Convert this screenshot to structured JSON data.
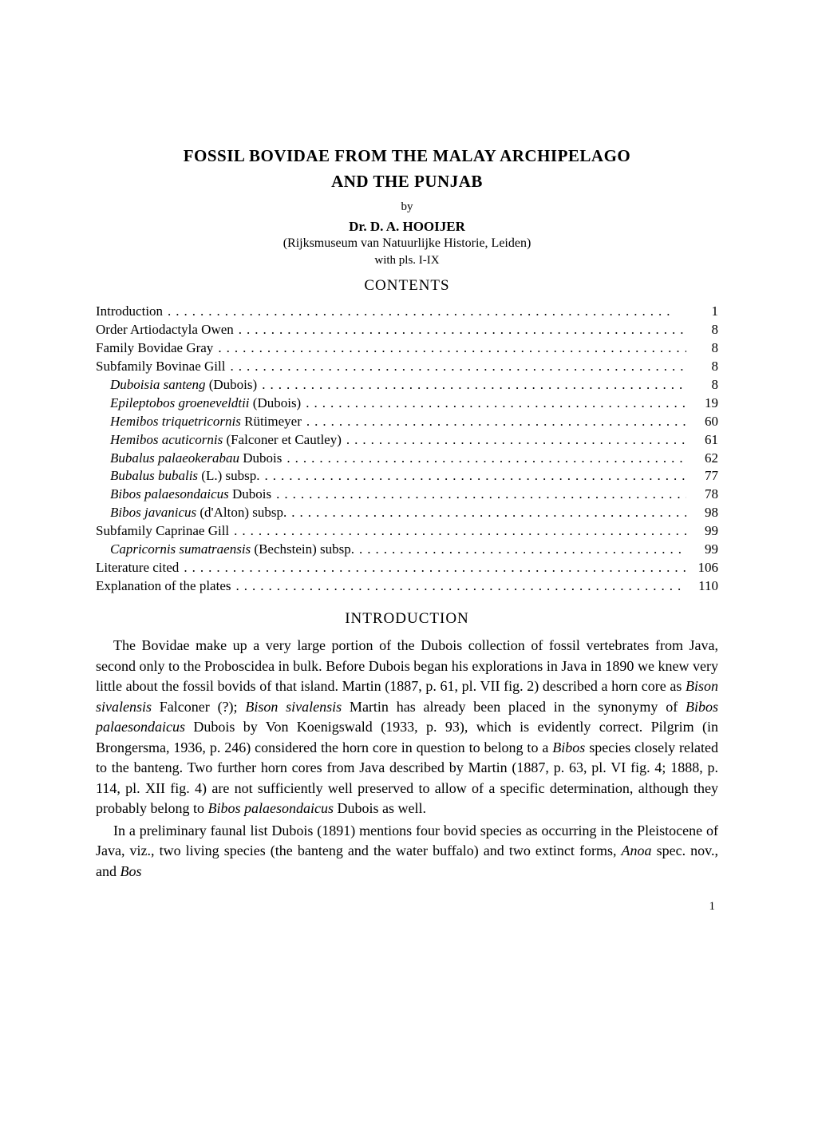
{
  "title_line1": "FOSSIL BOVIDAE FROM THE MALAY ARCHIPELAGO",
  "title_line2": "AND THE PUNJAB",
  "by": "by",
  "author": "Dr. D. A. HOOIJER",
  "affiliation": "(Rijksmuseum van Natuurlijke Historie, Leiden)",
  "plates": "with pls. I-IX",
  "contents_heading": "CONTENTS",
  "toc": [
    {
      "label_pre": "Introduction",
      "label_ital": "",
      "label_post": "",
      "page": "1",
      "indent": 0
    },
    {
      "label_pre": "Order Artiodactyla Owen",
      "label_ital": "",
      "label_post": "",
      "page": "8",
      "indent": 0
    },
    {
      "label_pre": "Family Bovidae Gray",
      "label_ital": "",
      "label_post": "",
      "page": "8",
      "indent": 0
    },
    {
      "label_pre": "Subfamily Bovinae Gill",
      "label_ital": "",
      "label_post": "",
      "page": "8",
      "indent": 0
    },
    {
      "label_pre": "",
      "label_ital": "Duboisia santeng",
      "label_post": " (Dubois)",
      "page": "8",
      "indent": 1
    },
    {
      "label_pre": "",
      "label_ital": "Epileptobos groeneveldtii",
      "label_post": " (Dubois)",
      "page": "19",
      "indent": 1
    },
    {
      "label_pre": "",
      "label_ital": "Hemibos triquetricornis",
      "label_post": " Rütimeyer",
      "page": "60",
      "indent": 1
    },
    {
      "label_pre": "",
      "label_ital": "Hemibos acuticornis",
      "label_post": " (Falconer et Cautley)",
      "page": "61",
      "indent": 1
    },
    {
      "label_pre": "",
      "label_ital": "Bubalus palaeokerabau",
      "label_post": " Dubois",
      "page": "62",
      "indent": 1
    },
    {
      "label_pre": "",
      "label_ital": "Bubalus bubalis",
      "label_post": " (L.) subsp.",
      "page": "77",
      "indent": 1
    },
    {
      "label_pre": "",
      "label_ital": "Bibos palaesondaicus",
      "label_post": " Dubois",
      "page": "78",
      "indent": 1
    },
    {
      "label_pre": "",
      "label_ital": "Bibos javanicus",
      "label_post": " (d'Alton) subsp.",
      "page": "98",
      "indent": 1
    },
    {
      "label_pre": "Subfamily Caprinae Gill",
      "label_ital": "",
      "label_post": "",
      "page": "99",
      "indent": 0
    },
    {
      "label_pre": "",
      "label_ital": "Capricornis sumatraensis",
      "label_post": " (Bechstein) subsp.",
      "page": "99",
      "indent": 1
    },
    {
      "label_pre": "Literature cited",
      "label_ital": "",
      "label_post": "",
      "page": "106",
      "indent": 0
    },
    {
      "label_pre": "Explanation of the plates",
      "label_ital": "",
      "label_post": "",
      "page": "110",
      "indent": 0
    }
  ],
  "intro_heading": "INTRODUCTION",
  "para1_a": "The Bovidae make up a very large portion of the Dubois collection of fossil vertebrates from Java, second only to the Proboscidea in bulk. Before Dubois began his explorations in Java in 1890 we knew very little about the fossil bovids of that island. Martin (1887, p. 61, pl. VII fig. 2) described a horn core as ",
  "para1_i1": "Bison sivalensis",
  "para1_b": " Falconer (?); ",
  "para1_i2": "Bison sivalensis",
  "para1_c": " Martin has already been placed in the synonymy of ",
  "para1_i3": "Bibos palaesondaicus",
  "para1_d": " Dubois by Von Koenigswald (1933, p. 93), which is evidently correct. Pilgrim (in Brongersma, 1936, p. 246) considered the horn core in question to belong to a ",
  "para1_i4": "Bibos",
  "para1_e": " species closely related to the banteng. Two further horn cores from Java described by Martin (1887, p. 63, pl. VI fig. 4; 1888, p. 114, pl. XII fig. 4) are not sufficiently well preserved to allow of a specific determination, although they probably belong to ",
  "para1_i5": "Bibos palaesondaicus",
  "para1_f": " Dubois as well.",
  "para2_a": "In a preliminary faunal list Dubois (1891) mentions four bovid species as occurring in the Pleistocene of Java, viz., two living species (the banteng and the water buffalo) and two extinct forms, ",
  "para2_i1": "Anoa",
  "para2_b": " spec. nov., and ",
  "para2_i2": "Bos",
  "page_number": "1",
  "leader_dots": ".............................................................."
}
